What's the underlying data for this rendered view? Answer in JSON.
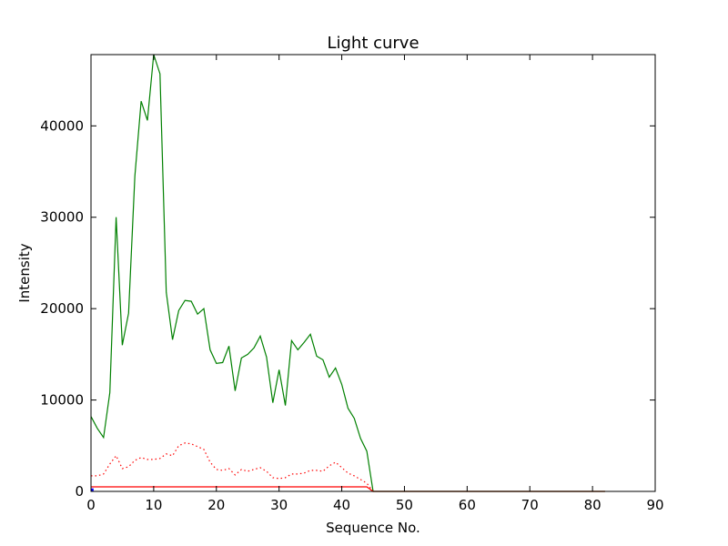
{
  "chart_data": {
    "type": "line",
    "title": "Light curve",
    "xlabel": "Sequence No.",
    "ylabel": "Intensity",
    "xlim": [
      0,
      90
    ],
    "ylim": [
      0,
      47800
    ],
    "xticks": [
      0,
      10,
      20,
      30,
      40,
      50,
      60,
      70,
      80,
      90
    ],
    "yticks": [
      0,
      10000,
      20000,
      30000,
      40000
    ],
    "grid": false,
    "series": [
      {
        "color": "#008000",
        "style": "solid",
        "x": [
          0,
          1,
          2,
          3,
          4,
          5,
          6,
          7,
          8,
          9,
          10,
          11,
          12,
          13,
          14,
          15,
          16,
          17,
          18,
          19,
          20,
          21,
          22,
          23,
          24,
          25,
          26,
          27,
          28,
          29,
          30,
          31,
          32,
          33,
          34,
          35,
          36,
          37,
          38,
          39,
          40,
          41,
          42,
          43,
          44,
          45,
          50,
          60,
          70,
          80,
          82
        ],
        "y": [
          8200,
          6900,
          5900,
          10800,
          30000,
          16000,
          19500,
          34500,
          42700,
          40600,
          47800,
          45700,
          21800,
          16600,
          19800,
          20900,
          20800,
          19400,
          20000,
          15500,
          14000,
          14100,
          15900,
          11000,
          14600,
          15000,
          15700,
          17000,
          14700,
          9700,
          13300,
          9400,
          16500,
          15500,
          16300,
          17200,
          14800,
          14400,
          12500,
          13500,
          11700,
          9100,
          8000,
          5800,
          4400,
          0,
          0,
          0,
          0,
          0,
          0
        ]
      },
      {
        "color": "#ff0000",
        "style": "dotted",
        "x": [
          0,
          1,
          2,
          3,
          4,
          5,
          6,
          7,
          8,
          9,
          10,
          11,
          12,
          13,
          14,
          15,
          16,
          17,
          18,
          19,
          20,
          21,
          22,
          23,
          24,
          25,
          26,
          27,
          28,
          29,
          30,
          31,
          32,
          33,
          34,
          35,
          36,
          37,
          38,
          39,
          40,
          41,
          42,
          43,
          44,
          45
        ],
        "y": [
          1700,
          1700,
          1900,
          3000,
          3900,
          2500,
          2700,
          3400,
          3700,
          3500,
          3500,
          3600,
          4100,
          3900,
          5000,
          5300,
          5200,
          4900,
          4600,
          3200,
          2400,
          2300,
          2500,
          1800,
          2400,
          2200,
          2400,
          2600,
          2200,
          1500,
          1400,
          1500,
          1900,
          1900,
          2000,
          2300,
          2300,
          2200,
          2800,
          3200,
          2600,
          2000,
          1700,
          1300,
          900,
          0
        ]
      },
      {
        "color": "#ff0000",
        "style": "solid",
        "x": [
          0,
          44,
          45,
          82
        ],
        "y": [
          500,
          500,
          0,
          0
        ]
      },
      {
        "color": "#0000ff",
        "style": "solid",
        "x": [
          0,
          0.4
        ],
        "y": [
          180,
          180
        ]
      }
    ]
  }
}
